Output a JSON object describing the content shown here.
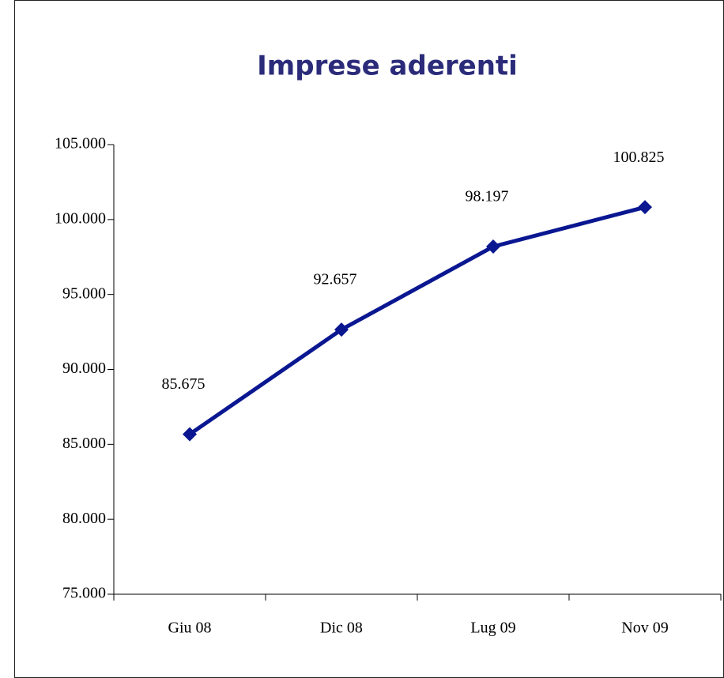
{
  "chart_data": {
    "type": "line",
    "title": "Imprese aderenti",
    "categories": [
      "Giu 08",
      "Dic 08",
      "Lug 09",
      "Nov 09"
    ],
    "series": [
      {
        "color": "#0a1791",
        "values": [
          85675,
          92657,
          98197,
          100825
        ],
        "value_labels": [
          "85.675",
          "92.657",
          "98.197",
          "100.825"
        ]
      }
    ],
    "ylim": [
      75000,
      105000
    ],
    "yticks": [
      {
        "value": 75000,
        "label": "75.000"
      },
      {
        "value": 80000,
        "label": "80.000"
      },
      {
        "value": 85000,
        "label": "85.000"
      },
      {
        "value": 90000,
        "label": "90.000"
      },
      {
        "value": 95000,
        "label": "95.000"
      },
      {
        "value": 100000,
        "label": "100.000"
      },
      {
        "value": 105000,
        "label": "105.000"
      }
    ],
    "grid": false
  }
}
